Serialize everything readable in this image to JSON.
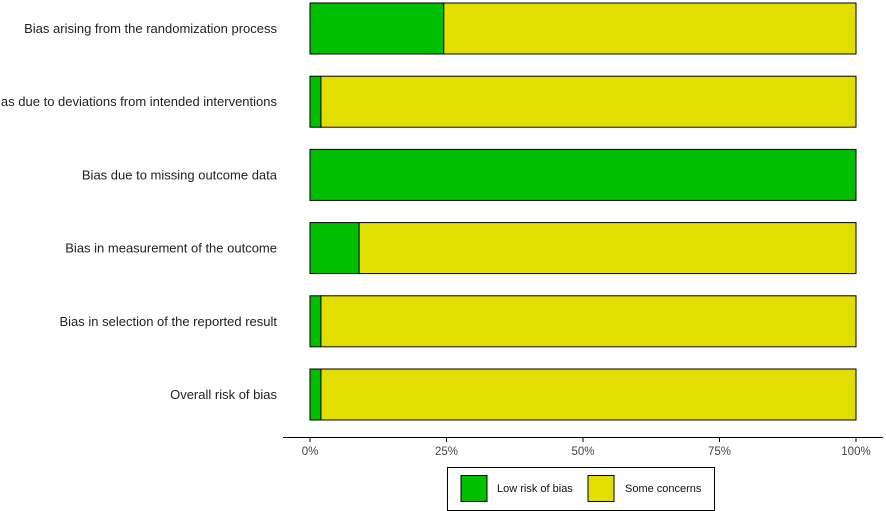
{
  "chart_data": {
    "type": "bar",
    "orientation": "horizontal",
    "stacked": true,
    "categories": [
      "Bias arising from the randomization process",
      "Bias due to deviations from intended interventions",
      "Bias due to missing outcome data",
      "Bias in measurement of the outcome",
      "Bias in selection of the reported result",
      "Overall risk of bias"
    ],
    "series": [
      {
        "name": "Low risk of bias",
        "color": "#00bf00",
        "values": [
          24.5,
          2,
          100,
          9,
          2,
          2
        ]
      },
      {
        "name": "Some concerns",
        "color": "#e2df00",
        "values": [
          75.5,
          98,
          0,
          91,
          98,
          98
        ]
      }
    ],
    "xlim": [
      0,
      100
    ],
    "xticks": [
      0,
      25,
      50,
      75,
      100
    ],
    "xtick_labels": [
      "0%",
      "25%",
      "50%",
      "75%",
      "100%"
    ],
    "title": "",
    "xlabel": "",
    "ylabel": "",
    "grid": false,
    "legend_position": "bottom"
  }
}
